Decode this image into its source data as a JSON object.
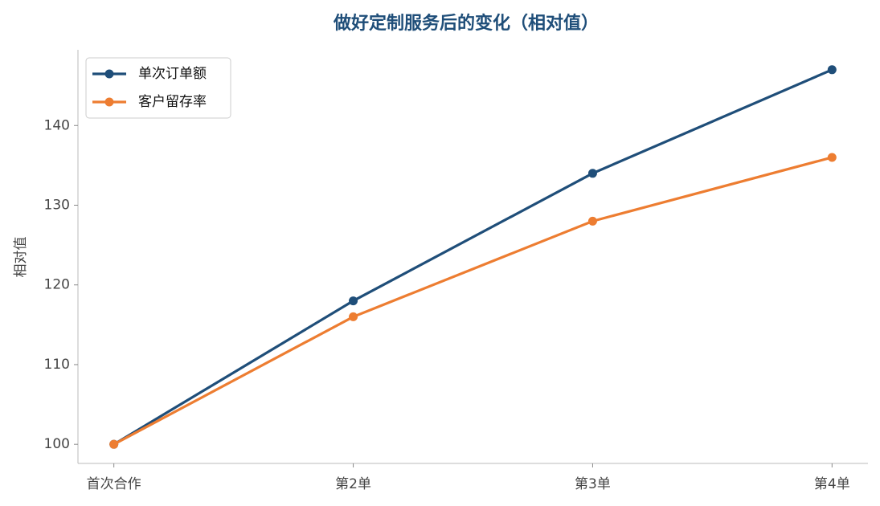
{
  "chart_data": {
    "type": "line",
    "title": "做好定制服务后的变化（相对值）",
    "y_label": "相对值",
    "categories": [
      "首次合作",
      "第2单",
      "第3单",
      "第4单"
    ],
    "series": [
      {
        "name": "单次订单额",
        "color": "#1f4e79",
        "values": [
          100,
          118,
          134,
          147
        ]
      },
      {
        "name": "客户留存率",
        "color": "#ed7d31",
        "values": [
          100,
          116,
          128,
          136
        ]
      }
    ],
    "ylim": [
      97.6,
      149.5
    ],
    "yticks": [
      100,
      110,
      120,
      130,
      140
    ],
    "grid": false,
    "legend": "upper left"
  }
}
